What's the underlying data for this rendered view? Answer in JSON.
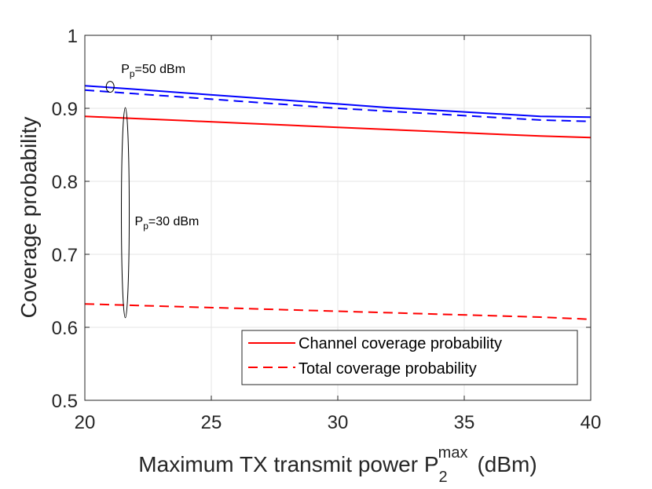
{
  "chart_data": {
    "type": "line",
    "title": "",
    "xlabel": {
      "main": "Maximum TX transmit power P",
      "subscript": "2",
      "superscript": "max",
      "unit": "(dBm)"
    },
    "ylabel": "Coverage probability",
    "xlim": [
      20,
      40
    ],
    "ylim": [
      0.5,
      1
    ],
    "xticks": [
      20,
      25,
      30,
      35,
      40
    ],
    "yticks": [
      0.5,
      0.6,
      0.7,
      0.8,
      0.9,
      1
    ],
    "xtick_labels": [
      "20",
      "25",
      "30",
      "35",
      "40"
    ],
    "ytick_labels": [
      "0.5",
      "0.6",
      "0.7",
      "0.8",
      "0.9",
      "1"
    ],
    "grid": true,
    "x": [
      20,
      22,
      24,
      26,
      28,
      30,
      32,
      34,
      36,
      38,
      40
    ],
    "series": [
      {
        "name": "Channel coverage probability (Pp=50 dBm)",
        "color": "#0000ff",
        "style": "solid",
        "values": [
          0.931,
          0.926,
          0.921,
          0.916,
          0.911,
          0.906,
          0.901,
          0.897,
          0.893,
          0.889,
          0.888
        ]
      },
      {
        "name": "Total coverage probability (Pp=50 dBm)",
        "color": "#0000ff",
        "style": "dashed",
        "values": [
          0.925,
          0.92,
          0.915,
          0.91,
          0.905,
          0.9,
          0.896,
          0.892,
          0.888,
          0.884,
          0.882
        ]
      },
      {
        "name": "Channel coverage probability (Pp=30 dBm)",
        "color": "#ff0000",
        "style": "solid",
        "values": [
          0.889,
          0.886,
          0.883,
          0.88,
          0.877,
          0.874,
          0.871,
          0.868,
          0.865,
          0.862,
          0.86
        ]
      },
      {
        "name": "Total coverage probability (Pp=30 dBm)",
        "color": "#ff0000",
        "style": "dashed",
        "values": [
          0.632,
          0.63,
          0.628,
          0.626,
          0.624,
          0.622,
          0.62,
          0.618,
          0.616,
          0.614,
          0.611
        ]
      }
    ],
    "legend": {
      "placement": "bottom-right",
      "entries": [
        {
          "label": "Channel coverage probability",
          "color": "#ff0000",
          "style": "solid"
        },
        {
          "label": "Total coverage probability",
          "color": "#ff0000",
          "style": "dashed"
        }
      ]
    },
    "annotations": [
      {
        "prefix": "P",
        "subscript": "p",
        "suffix": "=50 dBm",
        "x": 21,
        "y_range": [
          0.922,
          0.937
        ]
      },
      {
        "prefix": "P",
        "subscript": "p",
        "suffix": "=30 dBm",
        "x": 21.6,
        "y_range": [
          0.613,
          0.901
        ]
      }
    ]
  }
}
